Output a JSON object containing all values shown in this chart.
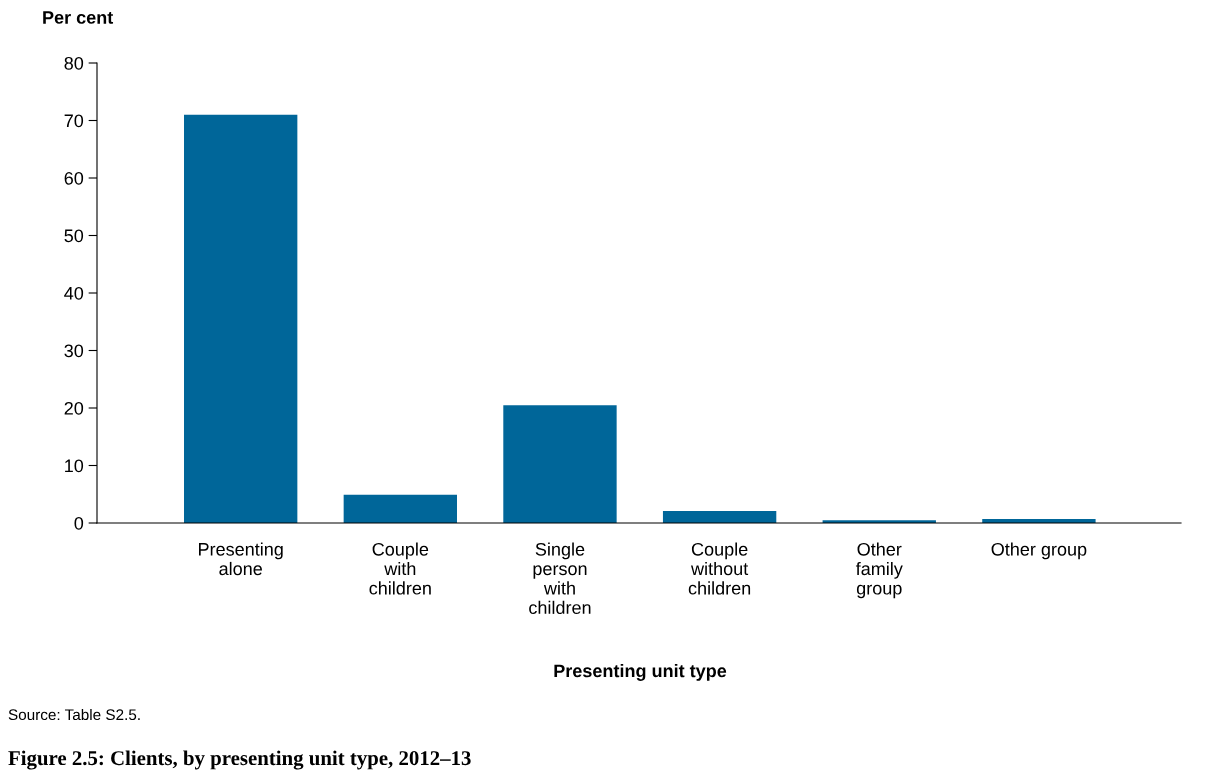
{
  "chart_data": {
    "type": "bar",
    "title": "Figure 2.5: Clients, by presenting unit type, 2012–13",
    "ylabel": "Per cent",
    "xlabel": "Presenting unit type",
    "categories": [
      "Presenting\nalone",
      "Couple\nwith\nchildren",
      "Single\nperson\nwith\nchildren",
      "Couple\nwithout\nchildren",
      "Other\nfamily\ngroup",
      "Other group"
    ],
    "values": [
      71.0,
      4.9,
      20.5,
      2.1,
      0.5,
      0.7
    ],
    "color": "#006699",
    "ylim": [
      0,
      80
    ],
    "yticks": [
      0,
      10,
      20,
      30,
      40,
      50,
      60,
      70,
      80
    ],
    "grid": false,
    "legend": false,
    "annotations": [
      "Source: Table S2.5."
    ]
  }
}
